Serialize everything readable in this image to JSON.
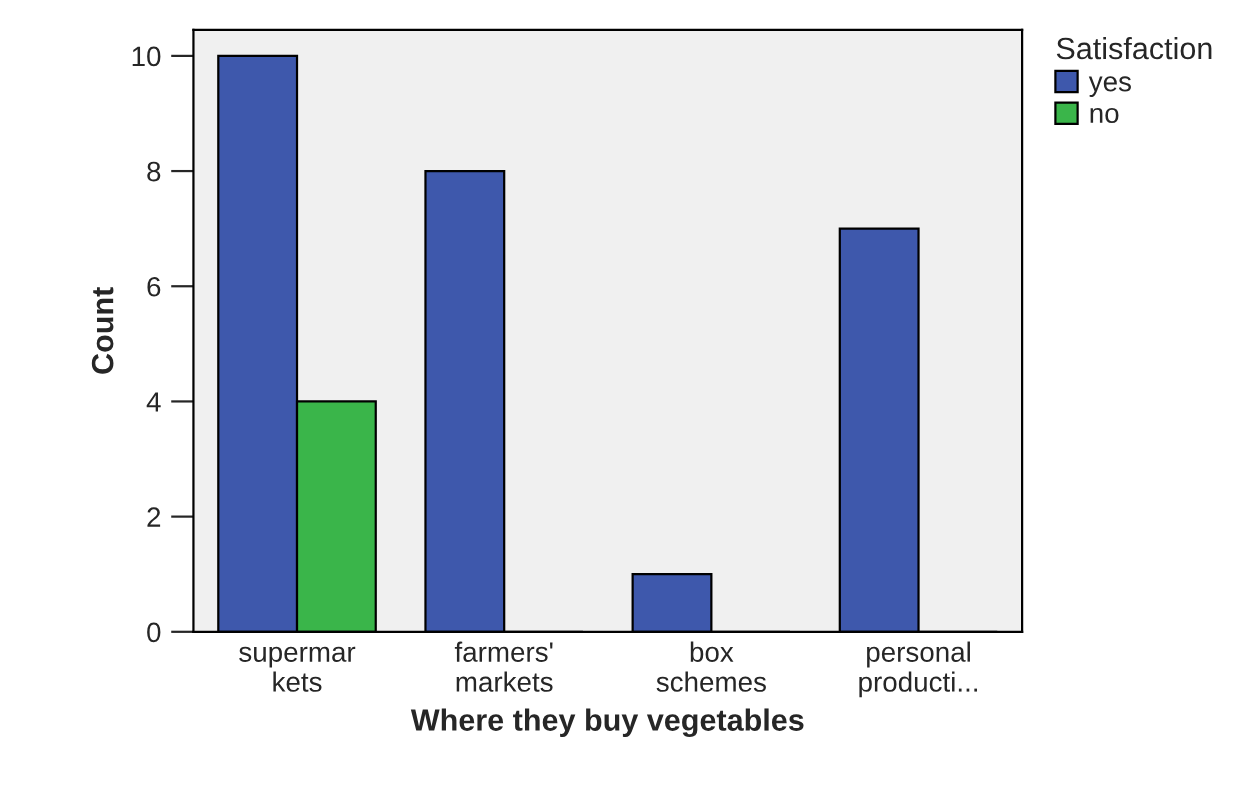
{
  "chart_data": {
    "type": "bar",
    "xlabel": "Where they buy vegetables",
    "ylabel": "Count",
    "legend_title": "Satisfaction",
    "categories": [
      "supermar\nkets",
      "farmers'\nmarkets",
      "box\nschemes",
      "personal\nproducti..."
    ],
    "series": [
      {
        "name": "yes",
        "color": "#3e58ac",
        "values": [
          10,
          8,
          1,
          7
        ]
      },
      {
        "name": "no",
        "color": "#3ab54a",
        "values": [
          4,
          0,
          0,
          0
        ]
      }
    ],
    "ylim": [
      0,
      10.45
    ],
    "yticks": [
      0,
      2,
      4,
      6,
      8,
      10
    ],
    "grid": false,
    "legend": "top right"
  }
}
